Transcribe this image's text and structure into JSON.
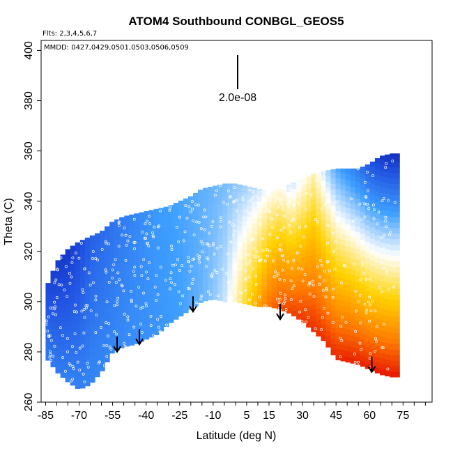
{
  "chart_data": {
    "type": "heatmap",
    "title": "ATOM4 Southbound CONBGL_GEOS5",
    "flights_note": "Flts: 2,3,4,5,6,7",
    "dates_note": "MMDD: 0427,0429,0501,0503,0506,0509",
    "xlabel": "Latitude (deg N)",
    "ylabel": "Theta (C)",
    "xlim": [
      -87,
      88
    ],
    "ylim": [
      260,
      404
    ],
    "x_ticks": [
      -85,
      -70,
      -55,
      -40,
      -25,
      -10,
      5,
      15,
      30,
      45,
      60,
      75
    ],
    "y_ticks": [
      260,
      280,
      300,
      320,
      340,
      360,
      380,
      400
    ],
    "scale_bar_label": "2.0e-08",
    "colormap": [
      "#00008b",
      "#1f4fe0",
      "#3fa0ff",
      "#ffffff",
      "#ffd200",
      "#ff7a00",
      "#e00000"
    ],
    "field_envelope": {
      "lat": [
        -85,
        -80,
        -75,
        -70,
        -65,
        -60,
        -55,
        -50,
        -45,
        -40,
        -35,
        -30,
        -25,
        -20,
        -15,
        -10,
        -5,
        0,
        5,
        10,
        15,
        20,
        25,
        30,
        35,
        40,
        45,
        50,
        55,
        60,
        65,
        70,
        72
      ],
      "theta_bottom": [
        278,
        272,
        268,
        265,
        267,
        272,
        280,
        282,
        283,
        285,
        287,
        291,
        294,
        297,
        300,
        301,
        300,
        300,
        299,
        298,
        298,
        297,
        295,
        292,
        288,
        284,
        277,
        276,
        275,
        273,
        271,
        270,
        270
      ],
      "theta_top": [
        305,
        316,
        321,
        324,
        326,
        328,
        332,
        334,
        335,
        336,
        337,
        338,
        340,
        342,
        345,
        346,
        347,
        347,
        346,
        345,
        344,
        345,
        347,
        349,
        351,
        352,
        353,
        353,
        353,
        355,
        358,
        359,
        359
      ],
      "value_top": [
        0.15,
        0.12,
        0.12,
        0.15,
        0.2,
        0.22,
        0.24,
        0.26,
        0.28,
        0.3,
        0.32,
        0.33,
        0.34,
        0.35,
        0.36,
        0.37,
        0.38,
        0.4,
        0.42,
        0.45,
        0.5,
        0.52,
        0.45,
        0.5,
        0.55,
        0.45,
        0.35,
        0.3,
        0.25,
        0.18,
        0.12,
        0.1,
        0.1
      ],
      "value_bottom": [
        0.26,
        0.26,
        0.27,
        0.27,
        0.28,
        0.28,
        0.28,
        0.29,
        0.3,
        0.3,
        0.31,
        0.32,
        0.33,
        0.35,
        0.37,
        0.4,
        0.45,
        0.55,
        0.65,
        0.75,
        0.85,
        0.9,
        0.92,
        0.93,
        0.94,
        0.94,
        0.95,
        0.96,
        0.96,
        0.96,
        0.97,
        0.97,
        0.97
      ]
    },
    "arrows": [
      {
        "lat": -53,
        "theta": 280
      },
      {
        "lat": -43,
        "theta": 283
      },
      {
        "lat": -19,
        "theta": 296
      },
      {
        "lat": 20,
        "theta": 293
      },
      {
        "lat": 61,
        "theta": 272
      }
    ]
  }
}
